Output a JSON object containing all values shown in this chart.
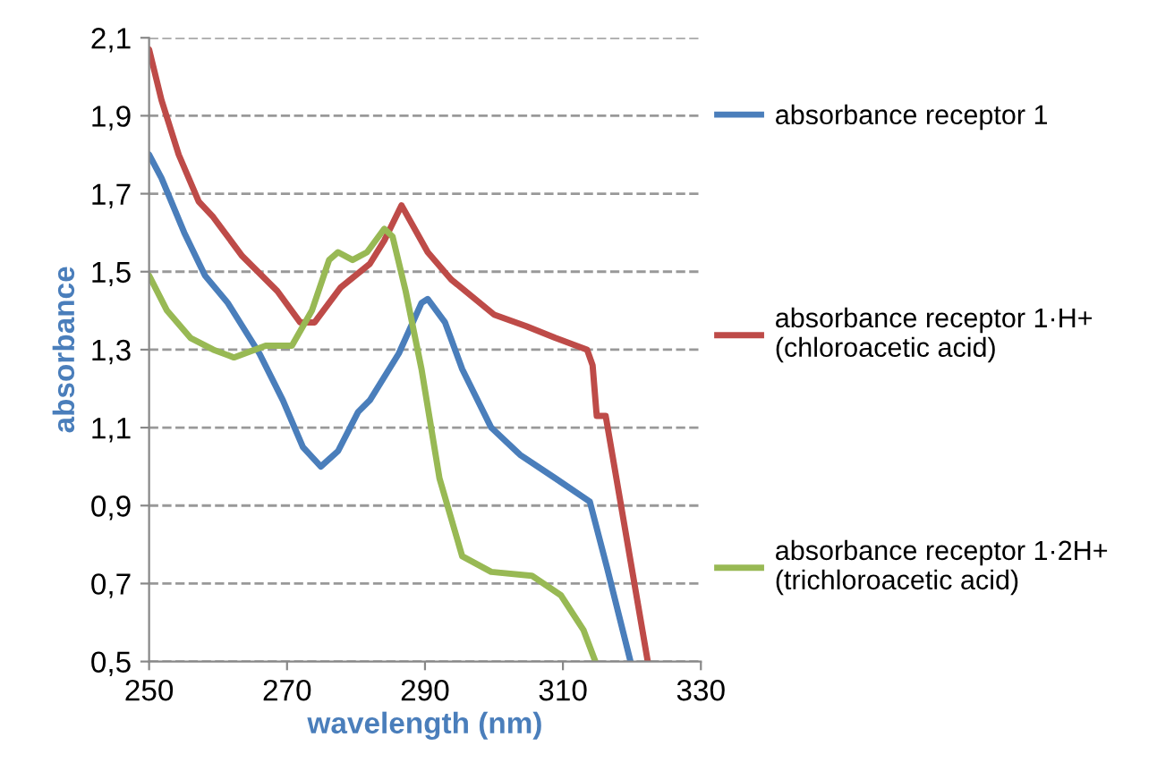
{
  "chart_data": {
    "type": "line",
    "xlabel": "wavelength (nm)",
    "ylabel": "absorbance",
    "xlim": [
      250,
      330
    ],
    "xticks": [
      250,
      270,
      290,
      310,
      330
    ],
    "ylim": [
      0.5,
      2.1
    ],
    "yticks": [
      {
        "value": 0.5,
        "label": "0,5"
      },
      {
        "value": 0.7,
        "label": "0,7"
      },
      {
        "value": 0.9,
        "label": "0,9"
      },
      {
        "value": 1.1,
        "label": "1,1"
      },
      {
        "value": 1.3,
        "label": "1,3"
      },
      {
        "value": 1.5,
        "label": "1,5"
      },
      {
        "value": 1.7,
        "label": "1,7"
      },
      {
        "value": 1.9,
        "label": "1,9"
      },
      {
        "value": 2.1,
        "label": "2,1"
      }
    ],
    "grid": "y",
    "legend": "right",
    "marker": "none",
    "line_style": "solid",
    "series": [
      {
        "name": "absorbance receptor 1",
        "color": "#4a7ebb",
        "x": [
          250,
          251.8,
          255.1,
          258.1,
          261.4,
          266,
          269.4,
          272.3,
          274.9,
          277.4,
          280.3,
          282,
          286.2,
          289.5,
          290.4,
          292.9,
          295.4,
          299.6,
          303.8,
          308.9,
          313.9,
          316.4,
          319.8
        ],
        "values": [
          1.8,
          1.74,
          1.6,
          1.49,
          1.42,
          1.29,
          1.17,
          1.05,
          1.0,
          1.04,
          1.14,
          1.17,
          1.29,
          1.42,
          1.43,
          1.37,
          1.25,
          1.1,
          1.03,
          0.97,
          0.91,
          0.74,
          0.5
        ]
      },
      {
        "name": "absorbance receptor 1·H+\n(chloroacetic acid)",
        "color": "#be4b48",
        "x": [
          250,
          251.8,
          254.3,
          257.2,
          259.3,
          263.5,
          268.6,
          271.9,
          274,
          277.8,
          282,
          284.1,
          286.6,
          290.4,
          293.8,
          300,
          304.7,
          308.9,
          313.5,
          314.3,
          314.9,
          316.2,
          322.3
        ],
        "values": [
          2.07,
          1.94,
          1.8,
          1.68,
          1.64,
          1.54,
          1.45,
          1.37,
          1.37,
          1.46,
          1.52,
          1.58,
          1.67,
          1.55,
          1.48,
          1.39,
          1.36,
          1.33,
          1.3,
          1.26,
          1.13,
          1.13,
          0.5
        ]
      },
      {
        "name": "absorbance receptor 1·2H+\n(trichloroacetic acid)",
        "color": "#98b954",
        "x": [
          250,
          252.6,
          256,
          259.3,
          262.3,
          266.9,
          270.7,
          273.6,
          276.1,
          277.4,
          279.5,
          281.6,
          284.1,
          285.3,
          287.2,
          289.5,
          292.1,
          295.4,
          299.6,
          305.5,
          309.7,
          313,
          314.7
        ],
        "values": [
          1.49,
          1.4,
          1.33,
          1.3,
          1.28,
          1.31,
          1.31,
          1.4,
          1.53,
          1.55,
          1.53,
          1.55,
          1.61,
          1.59,
          1.45,
          1.25,
          0.97,
          0.77,
          0.73,
          0.72,
          0.67,
          0.58,
          0.5
        ]
      }
    ]
  }
}
